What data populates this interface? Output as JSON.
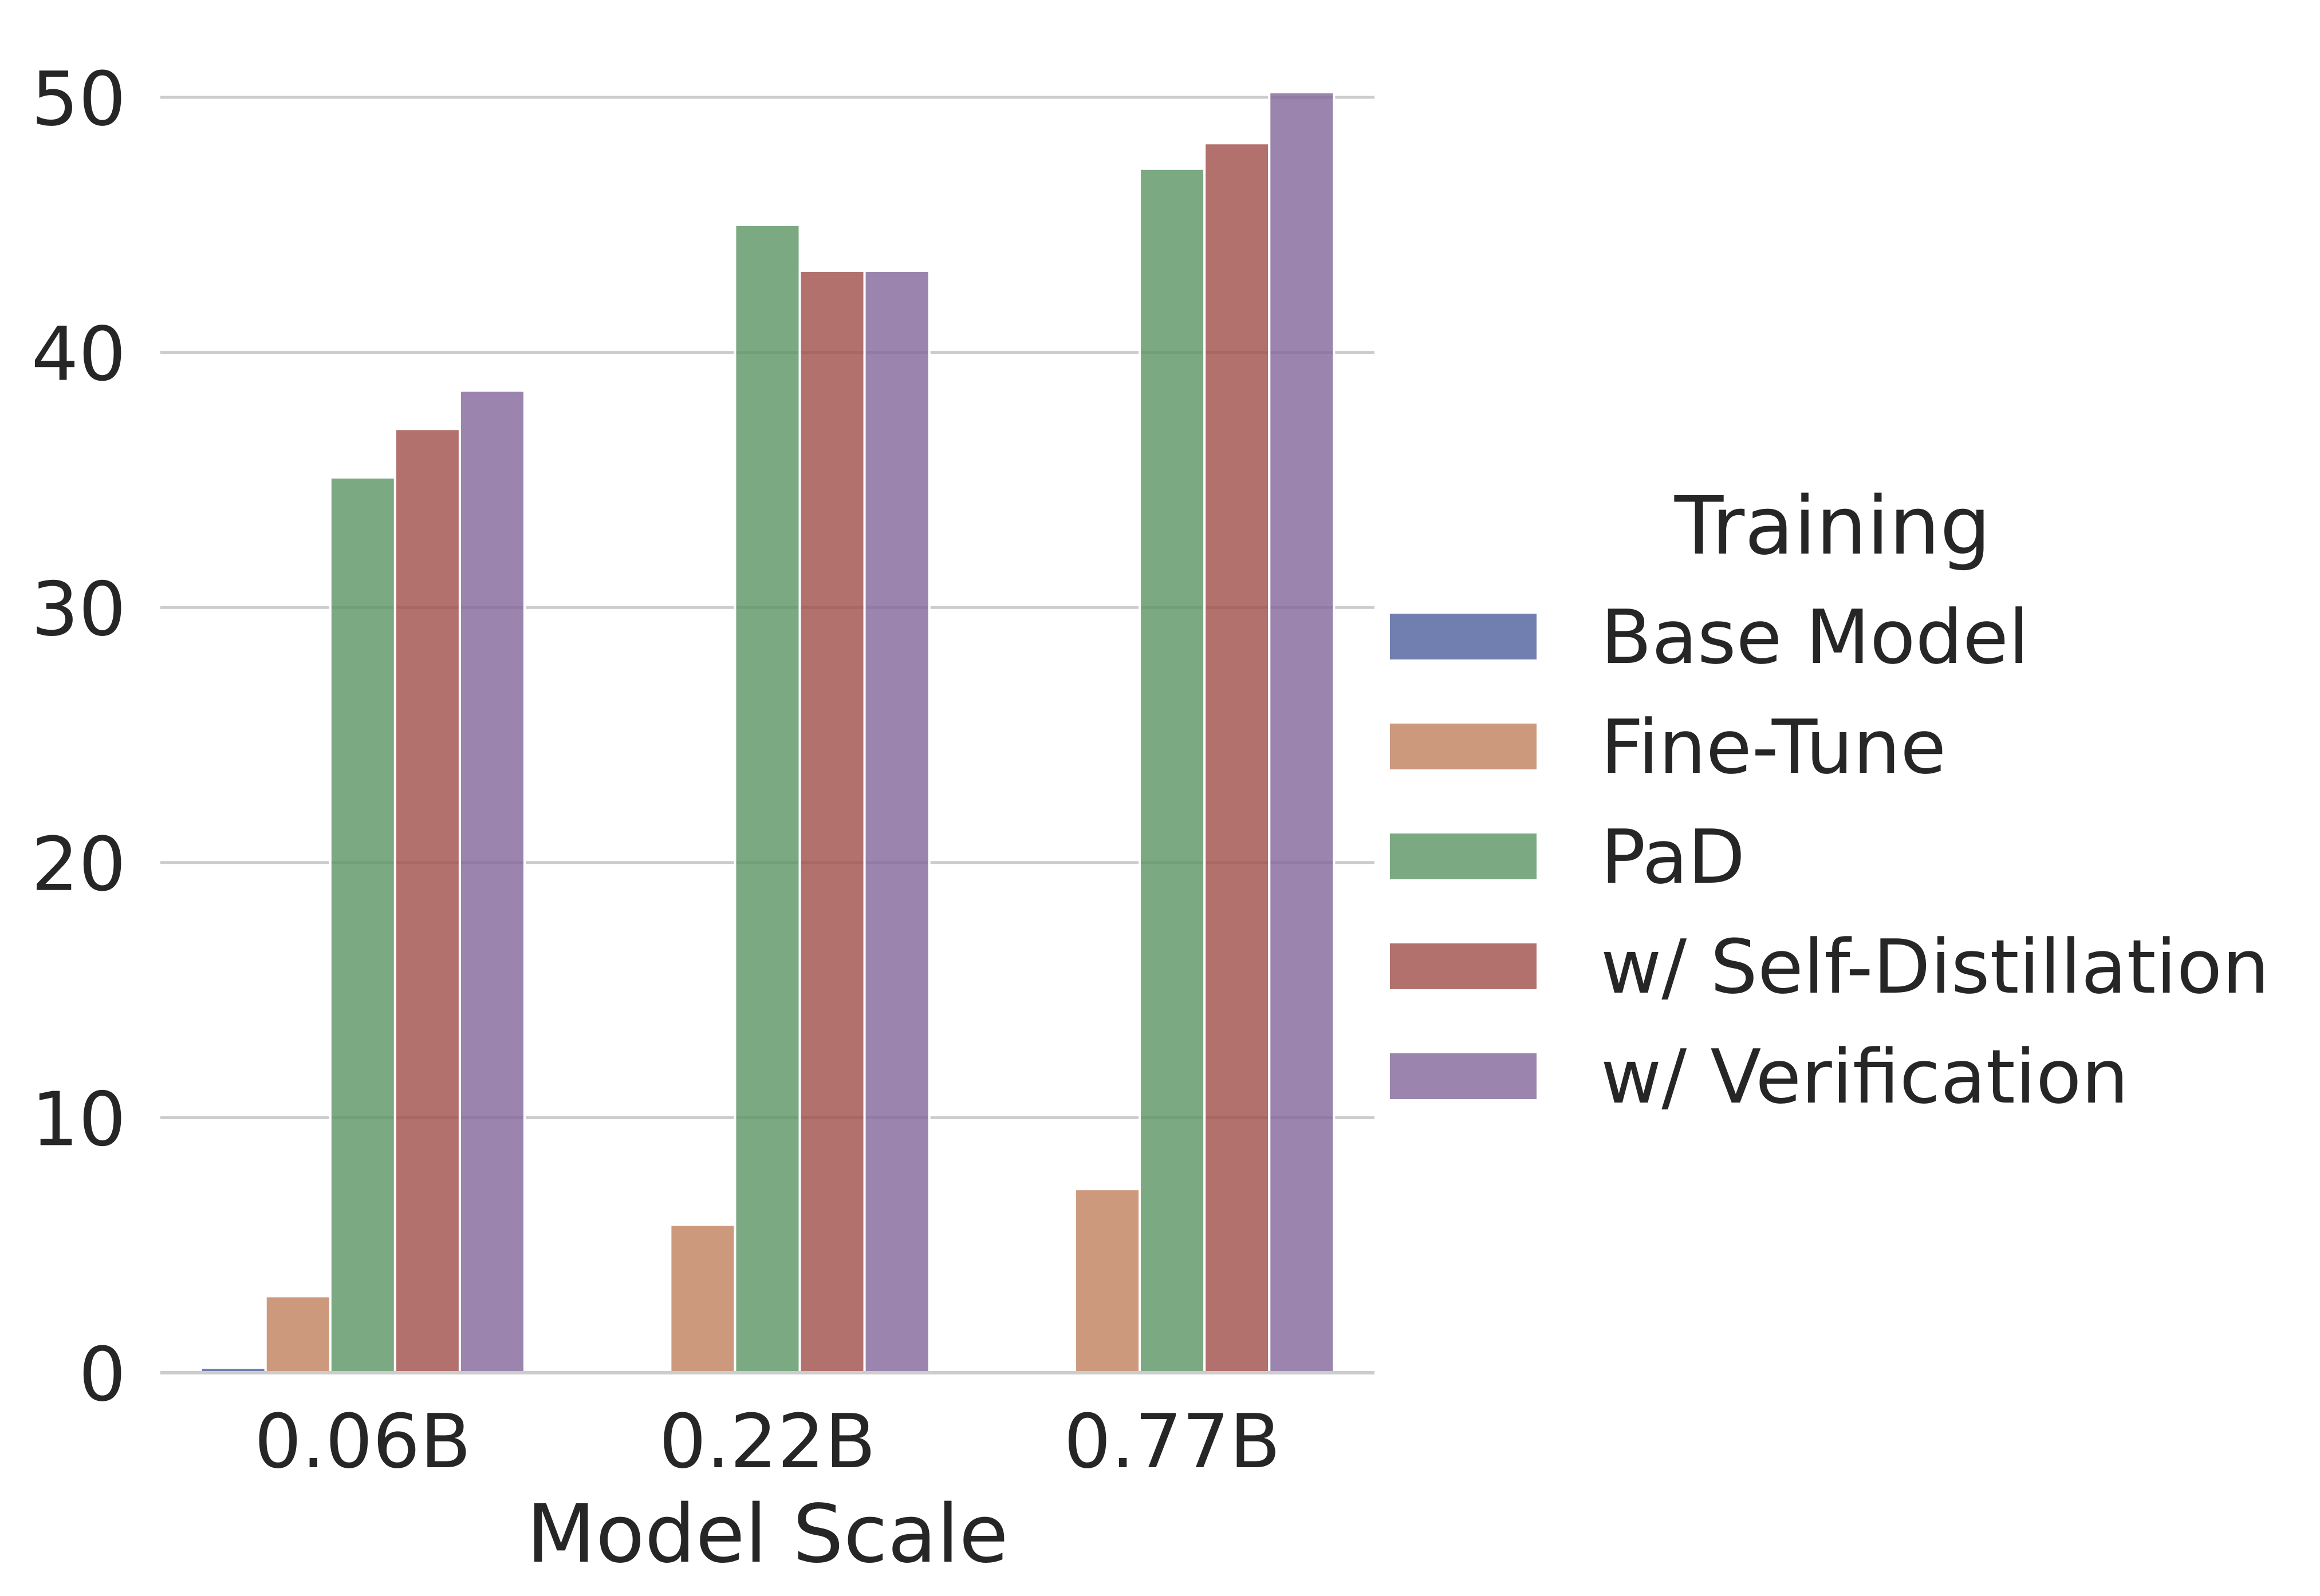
{
  "chart_data": {
    "type": "bar",
    "categories": [
      "0.06B",
      "0.22B",
      "0.77B"
    ],
    "series": [
      {
        "name": "Base Model",
        "color": "#4c5f9c",
        "values": [
          0.2,
          0,
          0
        ]
      },
      {
        "name": "Fine-Tune",
        "color": "#c0805d",
        "values": [
          3.0,
          5.8,
          7.2
        ]
      },
      {
        "name": "PaD",
        "color": "#5a9463",
        "values": [
          35.1,
          45.0,
          47.2
        ]
      },
      {
        "name": "w/ Self-Distillation",
        "color": "#a04d48",
        "values": [
          37.0,
          43.2,
          48.2
        ]
      },
      {
        "name": "w/ Verification",
        "color": "#82679a",
        "values": [
          38.5,
          43.2,
          50.2
        ]
      }
    ],
    "xlabel": "Model Scale",
    "ylabel": "",
    "ylim": [
      0,
      50
    ],
    "yticks": [
      "0",
      "10",
      "20",
      "30",
      "40",
      "50"
    ],
    "grid": true,
    "legend": {
      "title": "Training",
      "placement": "right"
    }
  }
}
